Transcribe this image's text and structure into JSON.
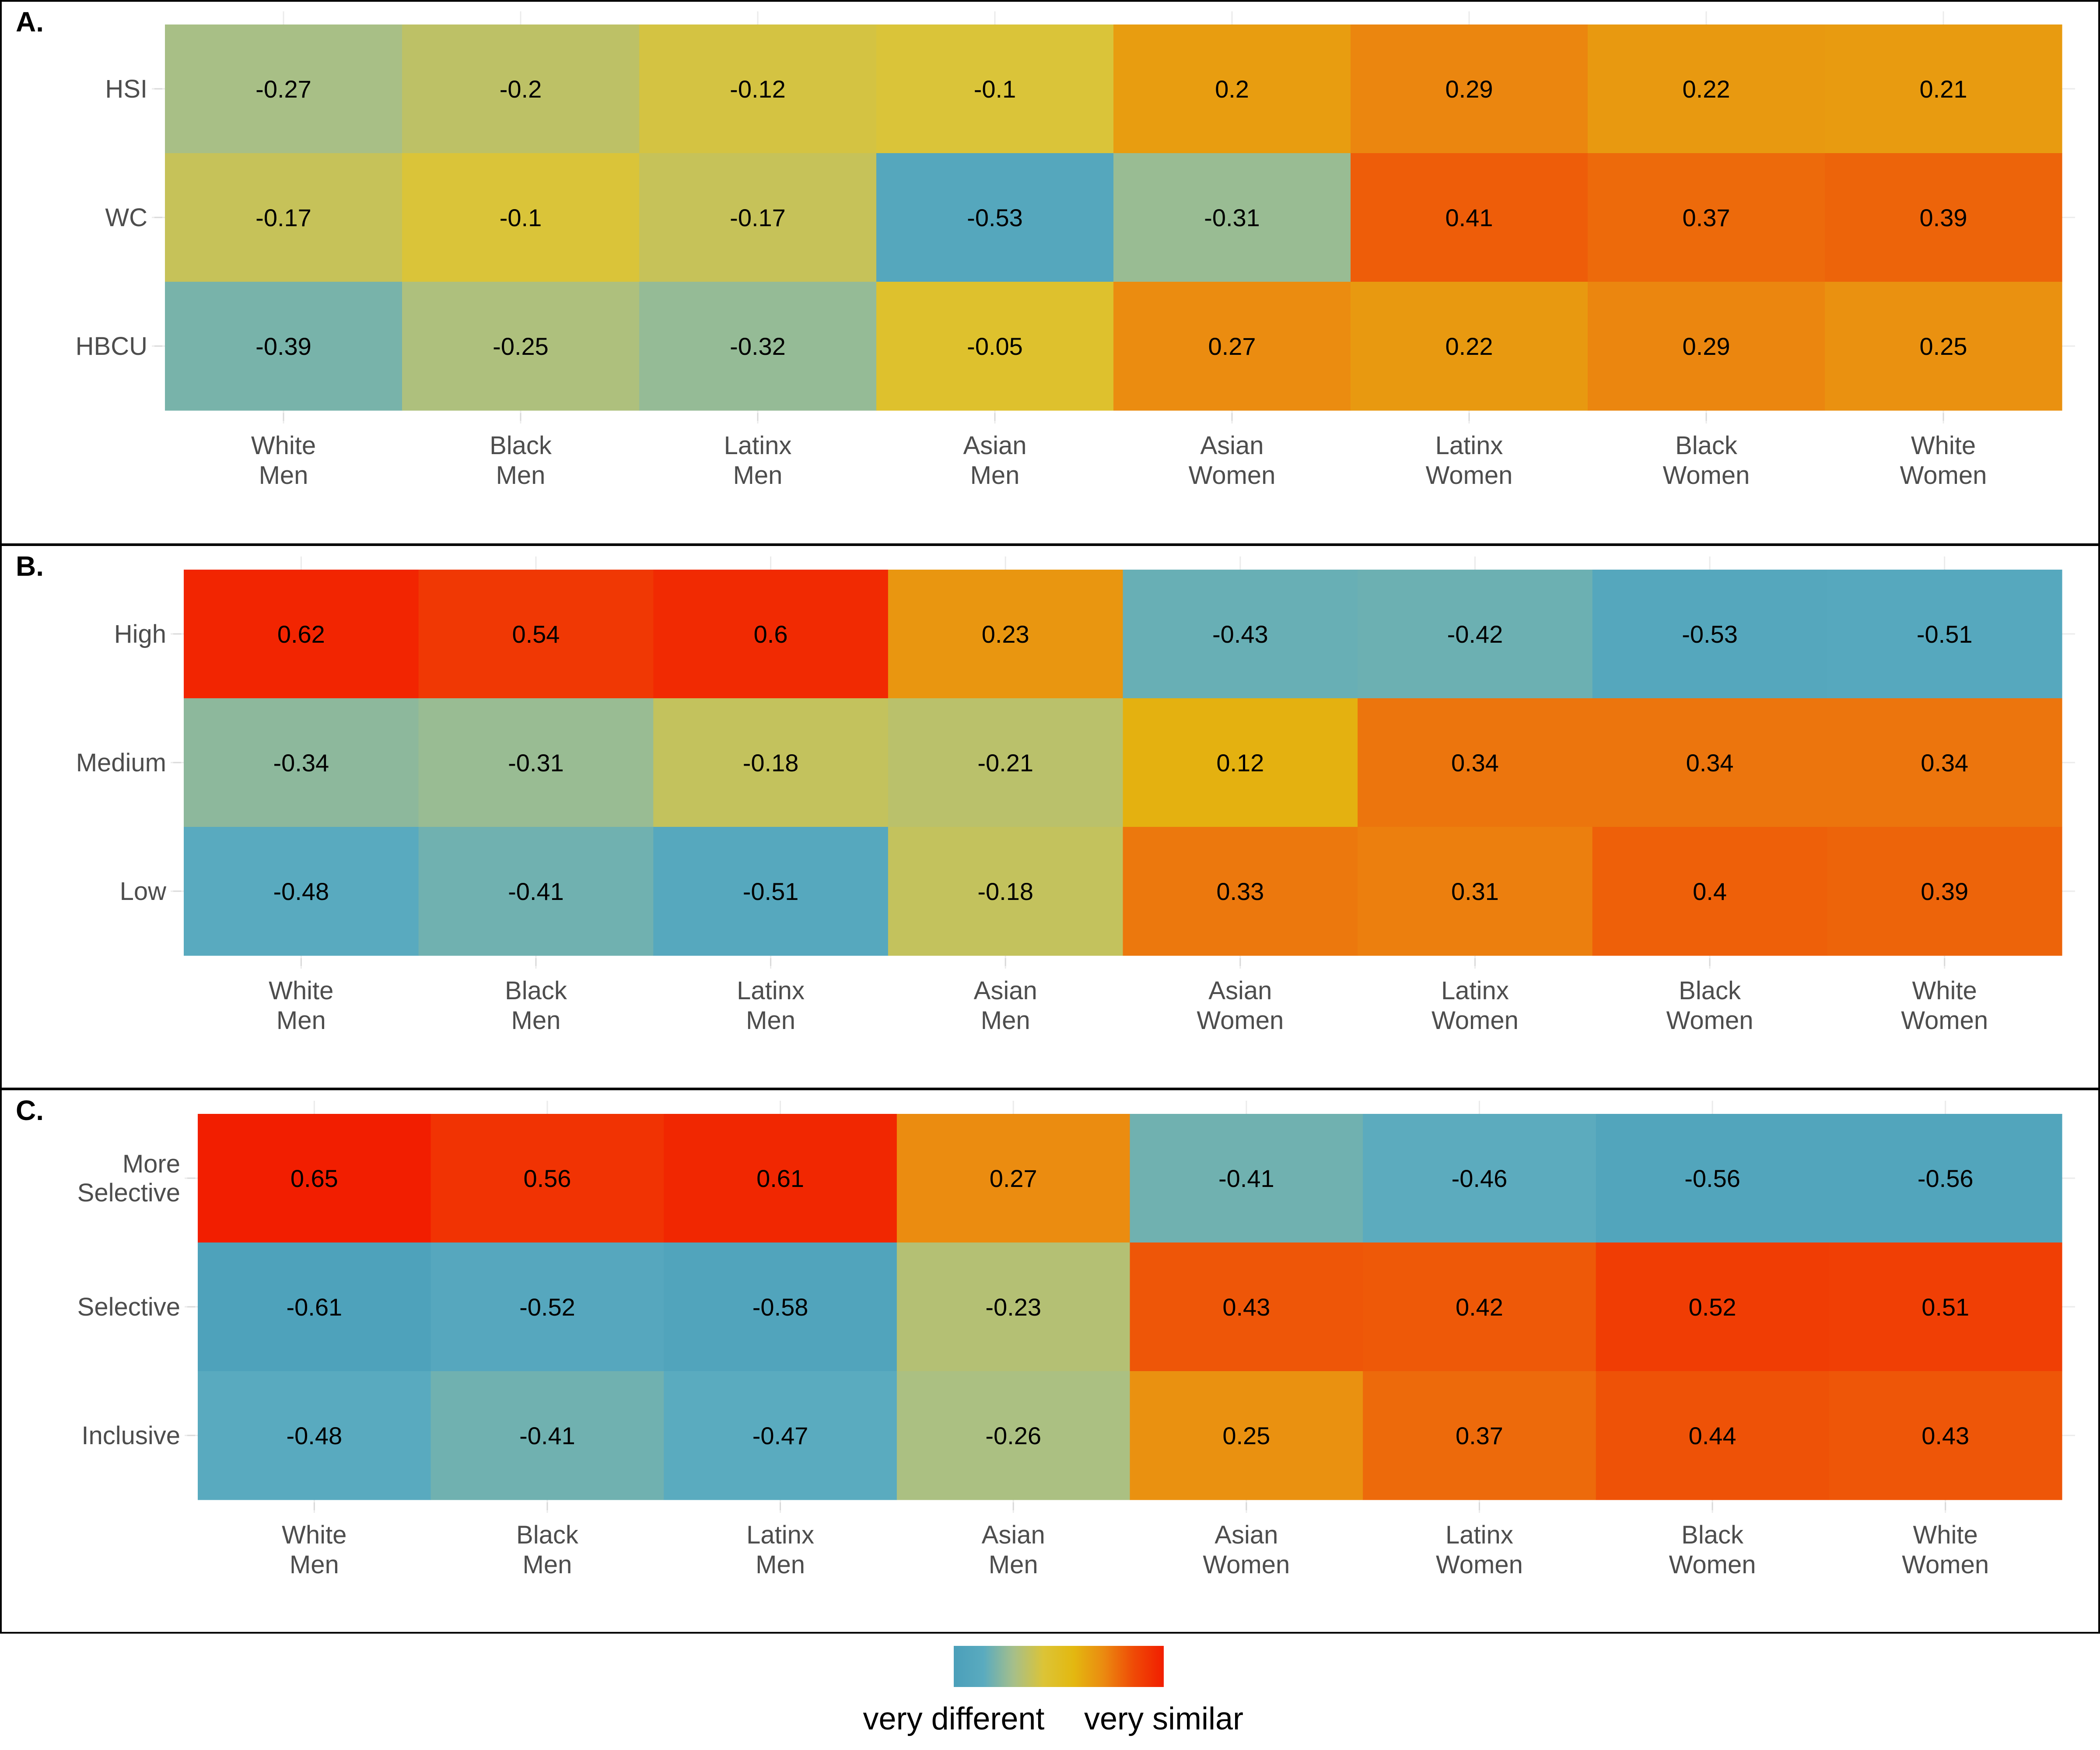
{
  "figure": {
    "legend": {
      "low_label": "very different",
      "high_label": "very similar",
      "colors": [
        "#4b9fba",
        "#5aabbf",
        "#a6bf8a",
        "#dcc436",
        "#e3b810",
        "#eb8a10",
        "#ef4a06",
        "#f21e00"
      ],
      "range": [
        -0.65,
        0.65
      ]
    }
  },
  "chart_data": [
    {
      "type": "heatmap",
      "panel": "A.",
      "x_categories": [
        [
          "White",
          "Men"
        ],
        [
          "Black",
          "Men"
        ],
        [
          "Latinx",
          "Men"
        ],
        [
          "Asian",
          "Men"
        ],
        [
          "Asian",
          "Women"
        ],
        [
          "Latinx",
          "Women"
        ],
        [
          "Black",
          "Women"
        ],
        [
          "White",
          "Women"
        ]
      ],
      "y_categories": [
        [
          "HSI"
        ],
        [
          "WC"
        ],
        [
          "HBCU"
        ]
      ],
      "values": [
        [
          -0.27,
          -0.2,
          -0.12,
          -0.1,
          0.2,
          0.29,
          0.22,
          0.21
        ],
        [
          -0.17,
          -0.1,
          -0.17,
          -0.53,
          -0.31,
          0.41,
          0.37,
          0.39
        ],
        [
          -0.39,
          -0.25,
          -0.32,
          -0.05,
          0.27,
          0.22,
          0.29,
          0.25
        ]
      ]
    },
    {
      "type": "heatmap",
      "panel": "B.",
      "x_categories": [
        [
          "White",
          "Men"
        ],
        [
          "Black",
          "Men"
        ],
        [
          "Latinx",
          "Men"
        ],
        [
          "Asian",
          "Men"
        ],
        [
          "Asian",
          "Women"
        ],
        [
          "Latinx",
          "Women"
        ],
        [
          "Black",
          "Women"
        ],
        [
          "White",
          "Women"
        ]
      ],
      "y_categories": [
        [
          "High"
        ],
        [
          "Medium"
        ],
        [
          "Low"
        ]
      ],
      "values": [
        [
          0.62,
          0.54,
          0.6,
          0.23,
          -0.43,
          -0.42,
          -0.53,
          -0.51
        ],
        [
          -0.34,
          -0.31,
          -0.18,
          -0.21,
          0.12,
          0.34,
          0.34,
          0.34
        ],
        [
          -0.48,
          -0.41,
          -0.51,
          -0.18,
          0.33,
          0.31,
          0.4,
          0.39
        ]
      ]
    },
    {
      "type": "heatmap",
      "panel": "C.",
      "x_categories": [
        [
          "White",
          "Men"
        ],
        [
          "Black",
          "Men"
        ],
        [
          "Latinx",
          "Men"
        ],
        [
          "Asian",
          "Men"
        ],
        [
          "Asian",
          "Women"
        ],
        [
          "Latinx",
          "Women"
        ],
        [
          "Black",
          "Women"
        ],
        [
          "White",
          "Women"
        ]
      ],
      "y_categories": [
        [
          "More",
          "Selective"
        ],
        [
          "Selective"
        ],
        [
          "Inclusive"
        ]
      ],
      "values": [
        [
          0.65,
          0.56,
          0.61,
          0.27,
          -0.41,
          -0.46,
          -0.56,
          -0.56
        ],
        [
          -0.61,
          -0.52,
          -0.58,
          -0.23,
          0.43,
          0.42,
          0.52,
          0.51
        ],
        [
          -0.48,
          -0.41,
          -0.47,
          -0.26,
          0.25,
          0.37,
          0.44,
          0.43
        ]
      ]
    }
  ]
}
